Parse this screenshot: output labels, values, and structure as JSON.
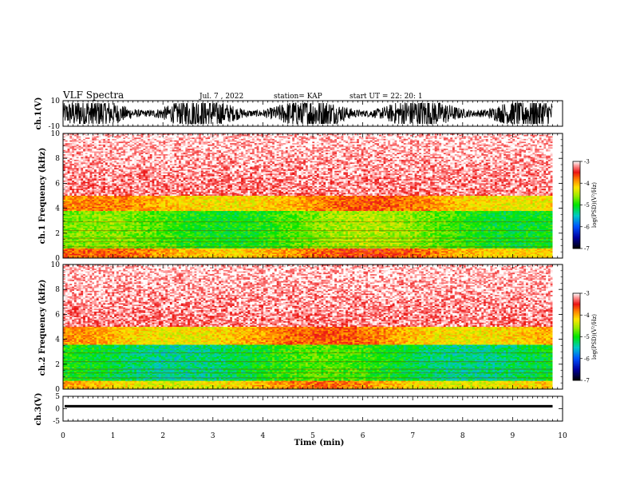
{
  "header": {
    "title": "VLF Spectra",
    "date": "Jul. 7 , 2022",
    "station": "station= KAP",
    "start": "start UT = 22: 20: 1"
  },
  "chart_data": [
    {
      "type": "line",
      "panel": "waveform-ch1",
      "ylabel": "ch.1(V)",
      "ylim": [
        -10,
        10
      ],
      "y_ticks": [
        "10",
        "-10"
      ],
      "xlim": [
        0,
        10
      ],
      "x_extent": 9.8,
      "series": [
        {
          "values_range": [
            -10,
            10
          ]
        }
      ]
    },
    {
      "type": "heatmap",
      "panel": "spectrogram-ch1",
      "ylabel": "ch.1 Frequency (kHz)",
      "ylim": [
        0,
        10
      ],
      "y_ticks": [
        "0",
        "2",
        "4",
        "6",
        "8",
        "10"
      ],
      "xlim": [
        0,
        10
      ],
      "x_extent": 9.8,
      "colorbar": {
        "label": "log(PSD)(V²/Hz)",
        "range": [
          -7,
          -3
        ],
        "ticks": [
          "-3",
          "-4",
          "-5",
          "-6",
          "-7"
        ]
      },
      "bands": [
        {
          "fmin": 0,
          "fmax": 0.8,
          "level": -4.0
        },
        {
          "fmin": 0.8,
          "fmax": 3.8,
          "level": -4.9
        },
        {
          "fmin": 3.8,
          "fmax": 5.0,
          "level": -4.1
        },
        {
          "fmin": 5.0,
          "fmax": 10,
          "level": -3.3
        }
      ]
    },
    {
      "type": "heatmap",
      "panel": "spectrogram-ch2",
      "ylabel": "ch.2 Frequency (kHz)",
      "ylim": [
        0,
        10
      ],
      "y_ticks": [
        "0",
        "2",
        "4",
        "6",
        "8",
        "10"
      ],
      "xlim": [
        0,
        10
      ],
      "x_extent": 9.8,
      "colorbar": {
        "label": "log(PSD)(V²/Hz)",
        "range": [
          -7,
          -3
        ],
        "ticks": [
          "-3",
          "-4",
          "-5",
          "-6",
          "-7"
        ]
      },
      "bands": [
        {
          "fmin": 0,
          "fmax": 0.7,
          "level": -4.2
        },
        {
          "fmin": 0.7,
          "fmax": 3.6,
          "level": -5.2
        },
        {
          "fmin": 3.6,
          "fmax": 5.0,
          "level": -4.1
        },
        {
          "fmin": 5.0,
          "fmax": 10,
          "level": -3.3
        }
      ]
    },
    {
      "type": "line",
      "panel": "waveform-ch3",
      "ylabel": "ch.3(V)",
      "ylim": [
        -5,
        5
      ],
      "y_ticks": [
        "5",
        "0",
        "-5"
      ],
      "xlim": [
        0,
        10
      ],
      "x_extent": 9.8,
      "series": [
        {
          "values_range": [
            0.5,
            1.5
          ]
        }
      ]
    }
  ],
  "x_axis": {
    "label": "Time (min)",
    "ticks": [
      "0",
      "1",
      "2",
      "3",
      "4",
      "5",
      "6",
      "7",
      "8",
      "9",
      "10"
    ]
  }
}
